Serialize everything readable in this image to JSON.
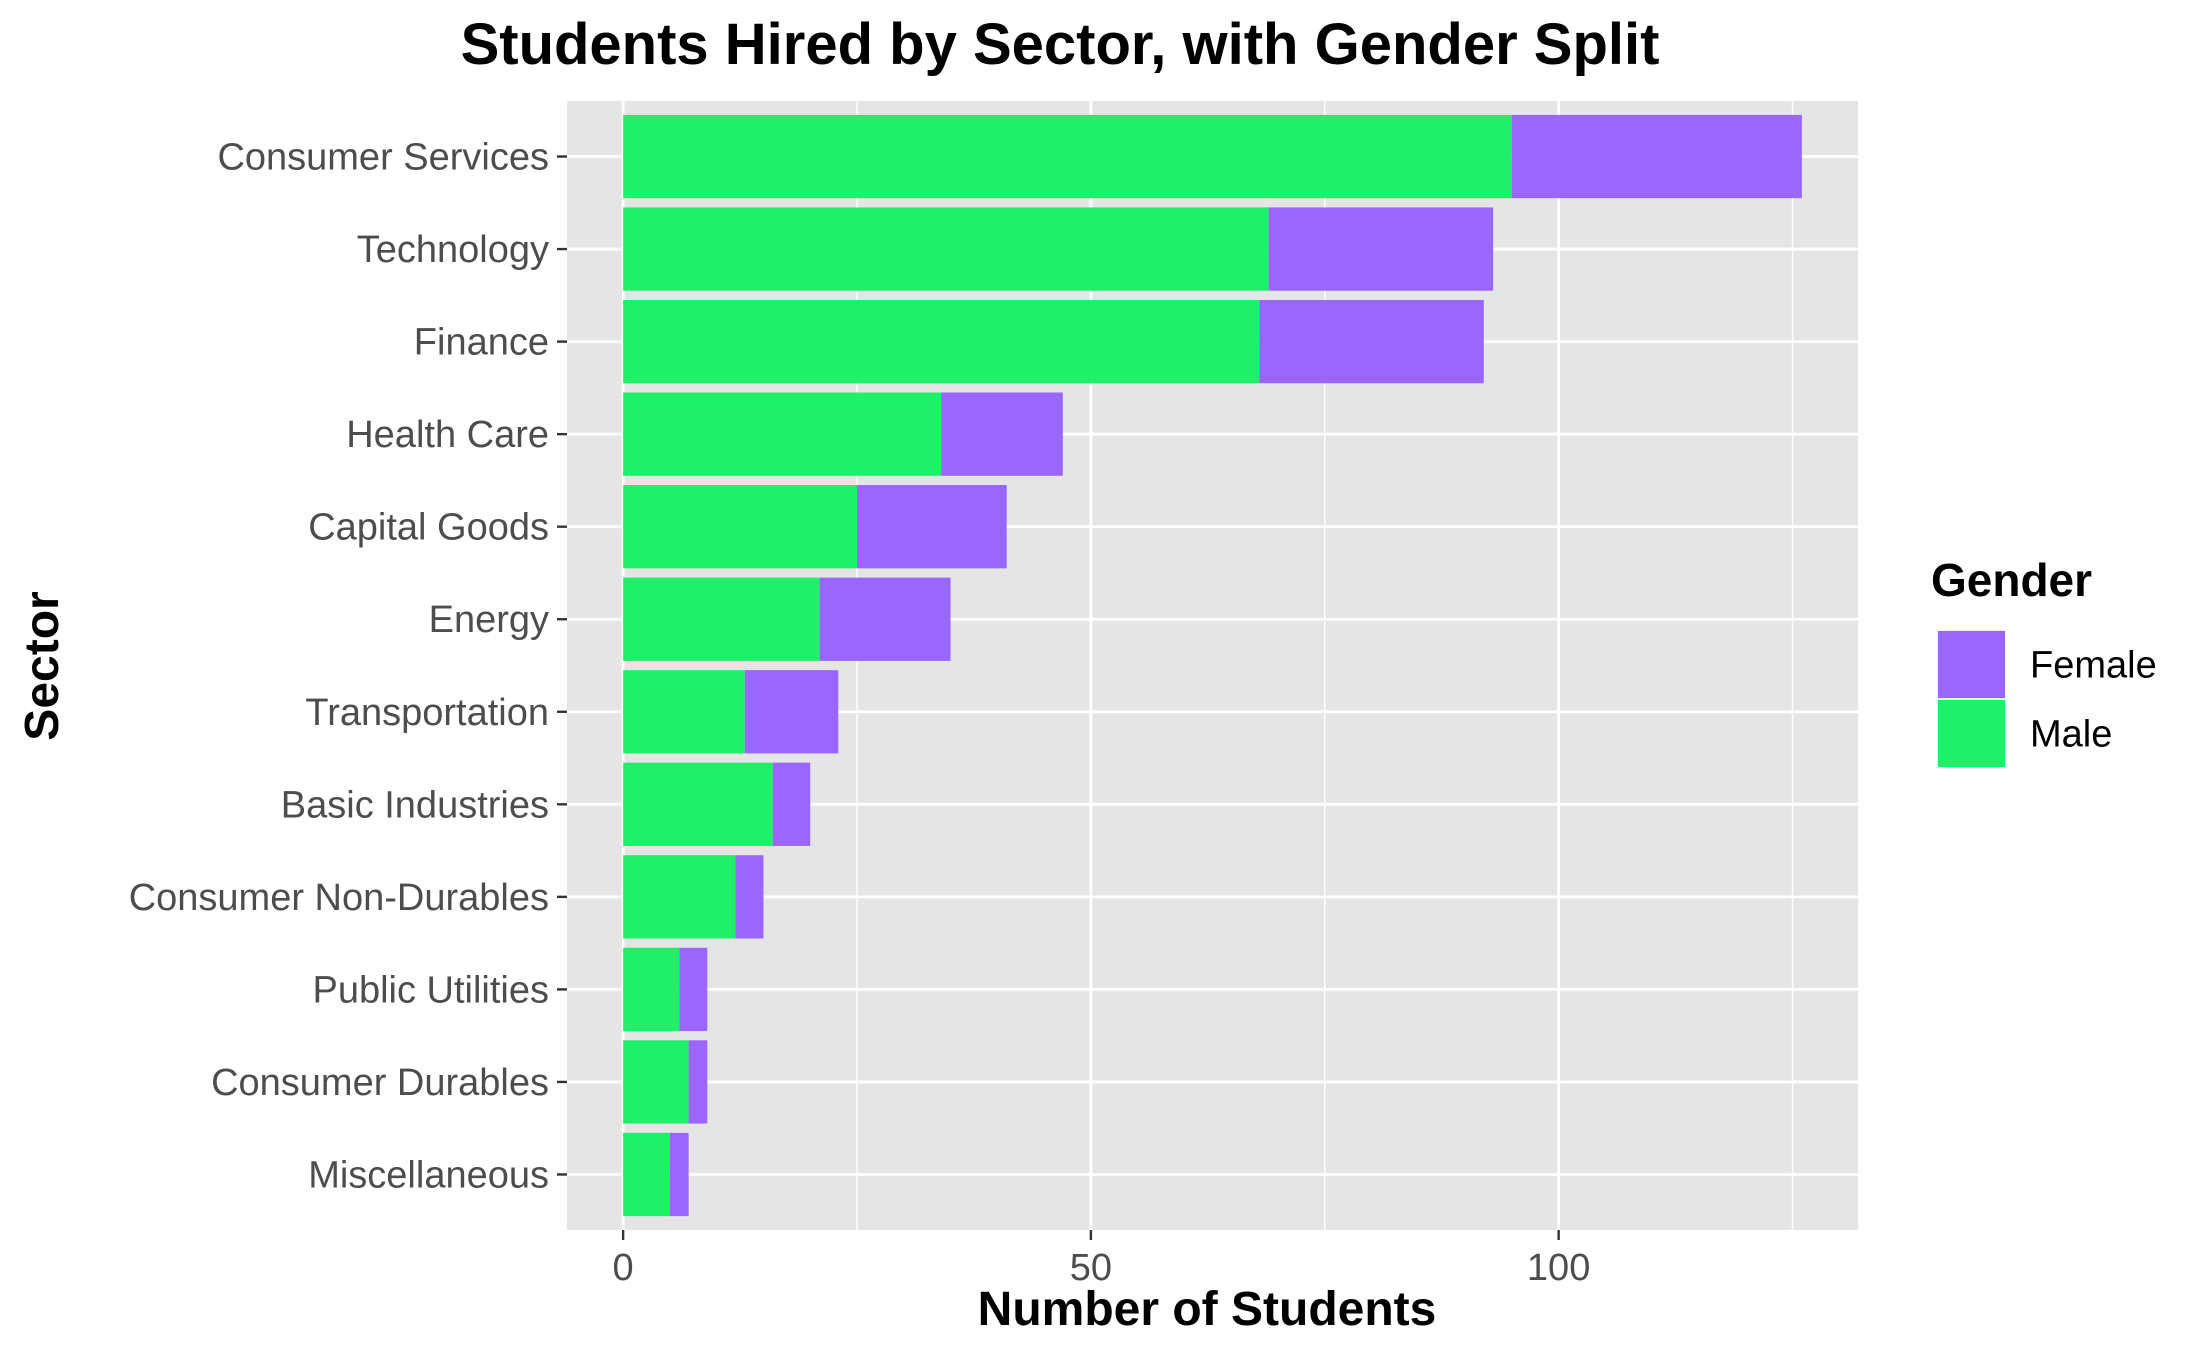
{
  "chart_data": {
    "type": "bar",
    "orientation": "horizontal",
    "stacked": true,
    "title": "Students Hired by Sector, with Gender Split",
    "xlabel": "Number of Students",
    "ylabel": "Sector",
    "xlim": [
      -6,
      132
    ],
    "xticks": [
      0,
      50,
      100
    ],
    "xtick_labels": [
      "0",
      "50",
      "100"
    ],
    "grid": true,
    "categories": [
      "Consumer Services",
      "Technology",
      "Finance",
      "Health Care",
      "Capital Goods",
      "Energy",
      "Transportation",
      "Basic Industries",
      "Consumer Non-Durables",
      "Public Utilities",
      "Consumer Durables",
      "Miscellaneous"
    ],
    "series": [
      {
        "name": "Male",
        "color": "#20EF6A",
        "values": [
          95,
          69,
          68,
          34,
          25,
          21,
          13,
          16,
          12,
          6,
          7,
          5
        ]
      },
      {
        "name": "Female",
        "color": "#9966FF",
        "values": [
          31,
          24,
          24,
          13,
          16,
          14,
          10,
          4,
          3,
          3,
          2,
          2
        ]
      }
    ],
    "legend": {
      "title": "Gender",
      "position": "right",
      "items": [
        "Female",
        "Male"
      ]
    }
  }
}
